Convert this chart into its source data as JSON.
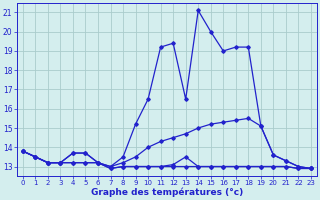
{
  "xlabel": "Graphe des températures (°c)",
  "hours": [
    0,
    1,
    2,
    3,
    4,
    5,
    6,
    7,
    8,
    9,
    10,
    11,
    12,
    13,
    14,
    15,
    16,
    17,
    18,
    19,
    20,
    21,
    22,
    23
  ],
  "line1": [
    13.8,
    13.5,
    13.2,
    13.2,
    13.7,
    13.7,
    13.2,
    13.0,
    13.5,
    15.2,
    16.5,
    19.2,
    19.4,
    16.5,
    21.1,
    20.0,
    19.0,
    19.2,
    19.2,
    15.1,
    13.6,
    13.3,
    13.0,
    12.9
  ],
  "line2": [
    13.8,
    13.5,
    13.2,
    13.2,
    13.7,
    13.7,
    13.2,
    13.0,
    13.2,
    13.5,
    14.0,
    14.3,
    14.5,
    14.7,
    15.0,
    15.2,
    15.3,
    15.4,
    15.5,
    15.1,
    13.6,
    13.3,
    13.0,
    12.9
  ],
  "line3": [
    13.8,
    13.5,
    13.2,
    13.2,
    13.2,
    13.2,
    13.2,
    12.9,
    13.0,
    13.0,
    13.0,
    13.0,
    13.0,
    13.0,
    13.0,
    13.0,
    13.0,
    13.0,
    13.0,
    13.0,
    13.0,
    13.0,
    12.9,
    12.9
  ],
  "line4": [
    13.8,
    13.5,
    13.2,
    13.2,
    13.2,
    13.2,
    13.2,
    12.9,
    13.0,
    13.0,
    13.0,
    13.0,
    13.1,
    13.5,
    13.0,
    13.0,
    13.0,
    13.0,
    13.0,
    13.0,
    13.0,
    13.0,
    12.9,
    12.9
  ],
  "line_color": "#2222cc",
  "bg_color": "#d4eeee",
  "grid_color": "#aacccc",
  "ylim_min": 12.5,
  "ylim_max": 21.5,
  "yticks": [
    13,
    14,
    15,
    16,
    17,
    18,
    19,
    20,
    21
  ]
}
